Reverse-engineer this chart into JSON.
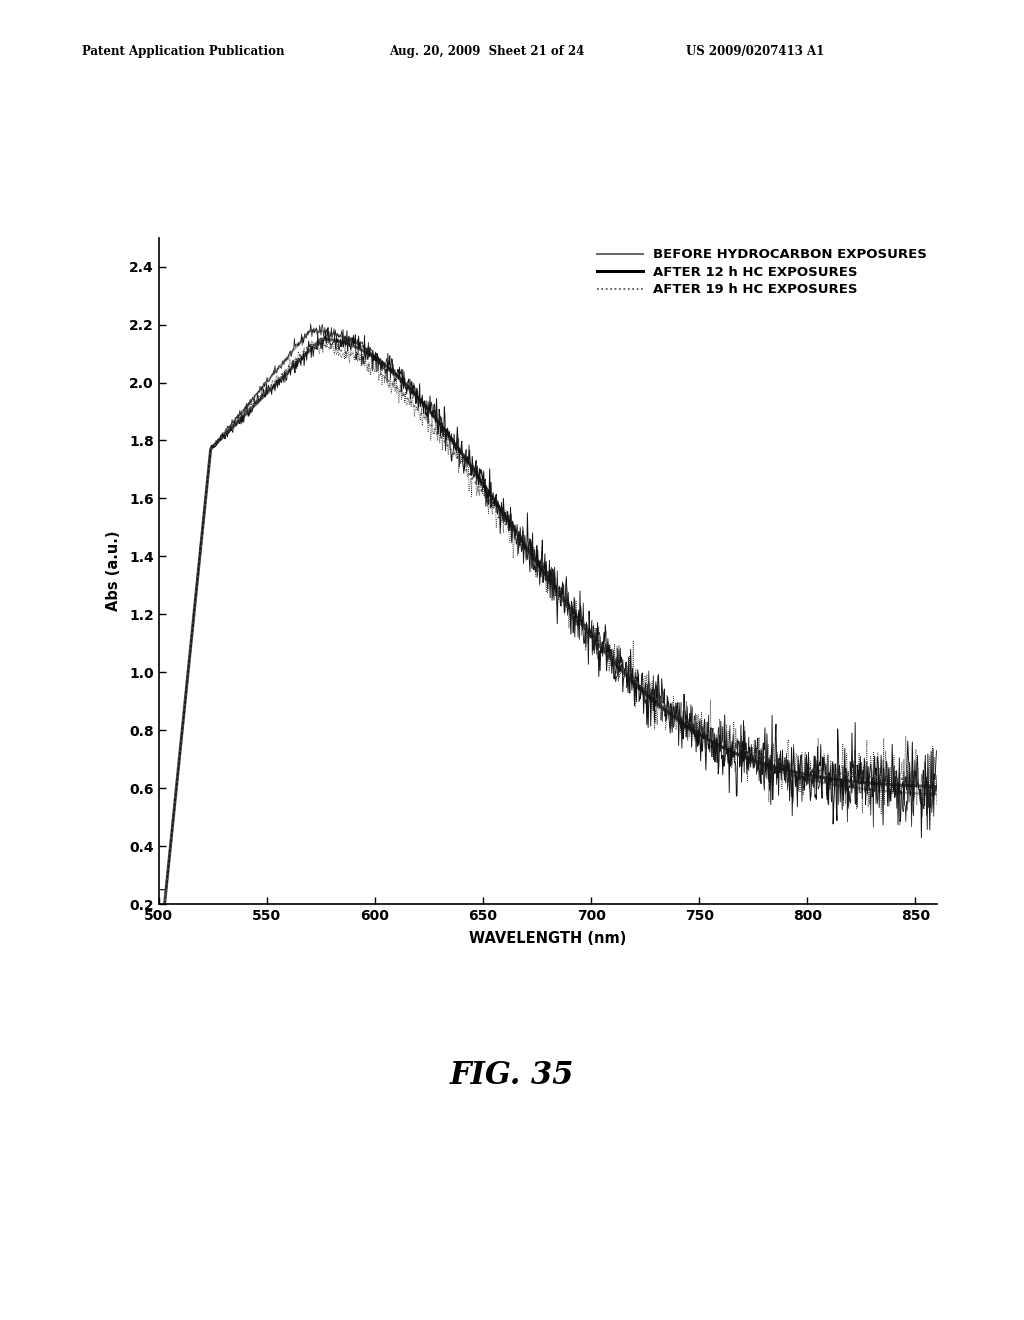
{
  "header_left": "Patent Application Publication",
  "header_mid": "Aug. 20, 2009  Sheet 21 of 24",
  "header_right": "US 2009/0207413 A1",
  "xlabel": "WAVELENGTH (nm)",
  "ylabel": "Abs (a.u.)",
  "xlim": [
    500,
    860
  ],
  "ylim": [
    0.2,
    2.5
  ],
  "xticks": [
    500,
    550,
    600,
    650,
    700,
    750,
    800,
    850
  ],
  "yticks": [
    0.2,
    0.4,
    0.6,
    0.8,
    1.0,
    1.2,
    1.4,
    1.6,
    1.8,
    2.0,
    2.2,
    2.4
  ],
  "fig_label": "FIG. 35",
  "legend_labels": [
    "BEFORE HYDROCARBON EXPOSURES",
    "AFTER 12 h HC EXPOSURES",
    "AFTER 19 h HC EXPOSURES"
  ],
  "background_color": "#ffffff",
  "noise_seed_before": 42,
  "noise_seed_after12": 77,
  "noise_seed_after19": 123
}
